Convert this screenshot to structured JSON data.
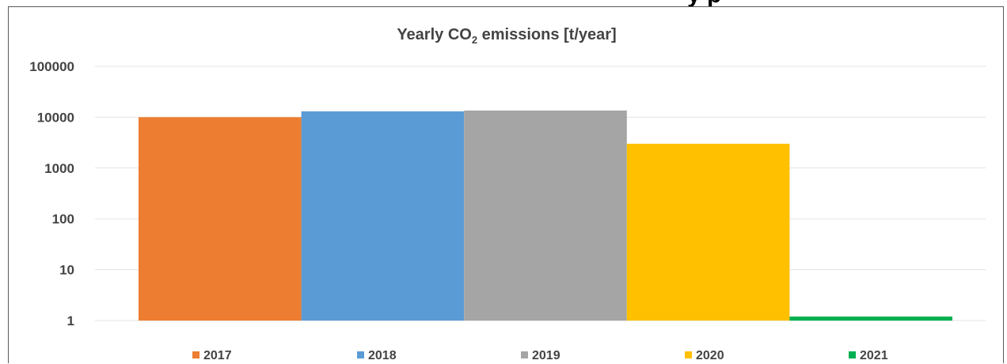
{
  "top_fragment": "y   p",
  "chart_data": {
    "type": "bar",
    "title_prefix": "Yearly CO",
    "title_subscript": "2",
    "title_suffix": " emissions [t/year]",
    "title": "Yearly CO2 emissions [t/year]",
    "y_scale": "log",
    "ylim": [
      1,
      100000
    ],
    "y_ticks": [
      "100000",
      "10000",
      "1000",
      "100",
      "10",
      "1"
    ],
    "grid": true,
    "legend_position": "bottom",
    "categories": [
      "2017",
      "2018",
      "2019",
      "2020",
      "2021"
    ],
    "values": [
      10000,
      13000,
      13500,
      3000,
      1.2
    ],
    "colors": [
      "#ed7d31",
      "#5b9bd5",
      "#a5a5a5",
      "#ffc000",
      "#00b050"
    ]
  }
}
